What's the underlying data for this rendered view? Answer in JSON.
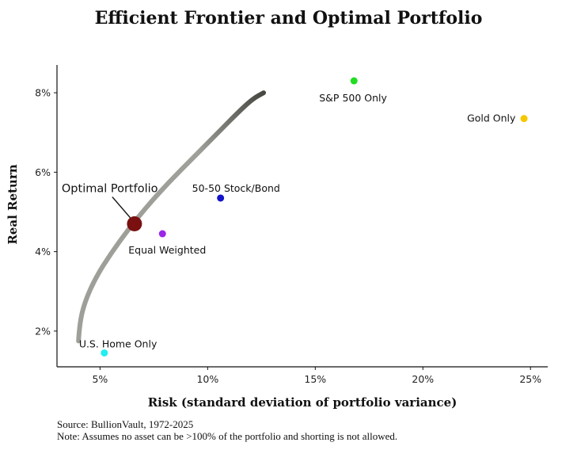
{
  "chart_data": {
    "type": "scatter",
    "title": "Efficient Frontier and Optimal Portfolio",
    "xlabel": "Risk (standard deviation of portfolio variance)",
    "ylabel": "Real Return",
    "xlim": [
      3,
      25.8
    ],
    "ylim": [
      1.1,
      8.7
    ],
    "x_ticks": [
      5,
      10,
      15,
      20,
      25
    ],
    "x_tick_labels": [
      "5%",
      "10%",
      "15%",
      "20%",
      "25%"
    ],
    "y_ticks": [
      2,
      4,
      6,
      8
    ],
    "y_tick_labels": [
      "2%",
      "4%",
      "6%",
      "8%"
    ],
    "grid": false,
    "frontier": {
      "x": [
        4.0,
        4.05,
        4.3,
        4.8,
        5.5,
        6.3,
        7.2,
        8.2,
        9.3,
        10.4,
        11.4,
        12.1,
        12.6
      ],
      "y": [
        1.75,
        2.2,
        2.75,
        3.35,
        3.95,
        4.55,
        5.15,
        5.75,
        6.35,
        6.95,
        7.5,
        7.85,
        8.0
      ],
      "color": "#9a9a95",
      "end_color": "#3e3e38"
    },
    "points": [
      {
        "label": "Optimal Portfolio",
        "x": 6.6,
        "y": 4.7,
        "color": "#7a1010",
        "size": 9.5,
        "label_dx": -92,
        "label_dy": -40
      },
      {
        "label": "Equal Weighted",
        "x": 7.9,
        "y": 4.45,
        "color": "#9b27e8",
        "size": 4.5,
        "label_dx": -43,
        "label_dy": 25
      },
      {
        "label": "50-50 Stock/Bond",
        "x": 10.6,
        "y": 5.35,
        "color": "#1414c8",
        "size": 4.5,
        "label_dx": -36,
        "label_dy": -8
      },
      {
        "label": "S&P 500 Only",
        "x": 16.8,
        "y": 8.3,
        "color": "#22dd22",
        "size": 4.5,
        "label_dx": -44,
        "label_dy": 26
      },
      {
        "label": "Gold Only",
        "x": 24.7,
        "y": 7.35,
        "color": "#f5c800",
        "size": 4.5,
        "label_dx": -72,
        "label_dy": 4
      },
      {
        "label": "U.S. Home Only",
        "x": 5.2,
        "y": 1.45,
        "color": "#22eef0",
        "size": 4.5,
        "label_dx": -32,
        "label_dy": -7
      }
    ]
  },
  "footer": {
    "source": "Source: BullionVault, 1972-2025",
    "note": "Note: Assumes no asset can be >100% of the portfolio and shorting is not allowed."
  }
}
